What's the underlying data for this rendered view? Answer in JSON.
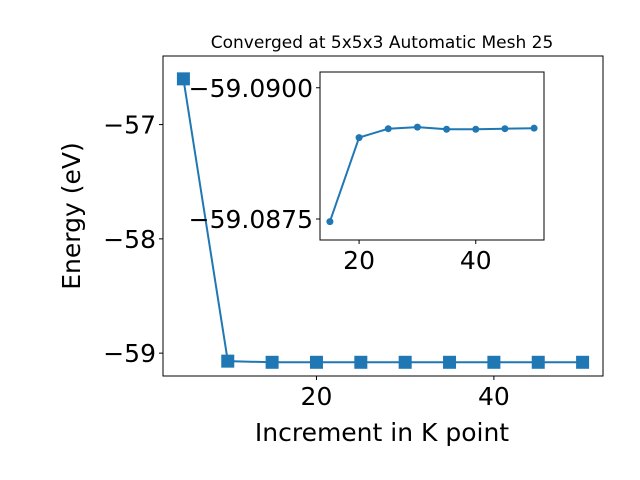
{
  "chart_data": [
    {
      "type": "line",
      "title": "Converged at 5x5x3 Automatic Mesh 25",
      "xlabel": "Increment in K point",
      "ylabel": "Energy (eV)",
      "xlim": [
        2.7,
        52.3
      ],
      "ylim": [
        -59.2,
        -56.4
      ],
      "xticks": [
        20,
        40
      ],
      "yticks": [
        -57,
        -58,
        -59
      ],
      "ytick_labels": [
        "−57",
        "−58",
        "−59"
      ],
      "marker": "square",
      "color": "#1f77b4",
      "grid": false,
      "series": [
        {
          "x": [
            5,
            10,
            15,
            20,
            25,
            30,
            35,
            40,
            45,
            50
          ],
          "y": [
            -56.6,
            -59.07,
            -59.08,
            -59.08,
            -59.08,
            -59.08,
            -59.08,
            -59.08,
            -59.08,
            -59.08
          ]
        }
      ]
    },
    {
      "type": "line",
      "inset": true,
      "xlim": [
        13.3,
        51.7
      ],
      "ylim": [
        -59.0871,
        -59.0903
      ],
      "xticks": [
        20,
        40
      ],
      "yticks": [
        -59.09,
        -59.0875
      ],
      "ytick_labels": [
        "−59.0900",
        "−59.0875"
      ],
      "marker": "circle",
      "color": "#1f77b4",
      "grid": false,
      "series": [
        {
          "x": [
            15,
            20,
            25,
            30,
            35,
            40,
            45,
            50
          ],
          "y": [
            -59.08745,
            -59.08905,
            -59.08922,
            -59.08925,
            -59.08921,
            -59.08921,
            -59.08922,
            -59.08923
          ]
        }
      ]
    }
  ]
}
